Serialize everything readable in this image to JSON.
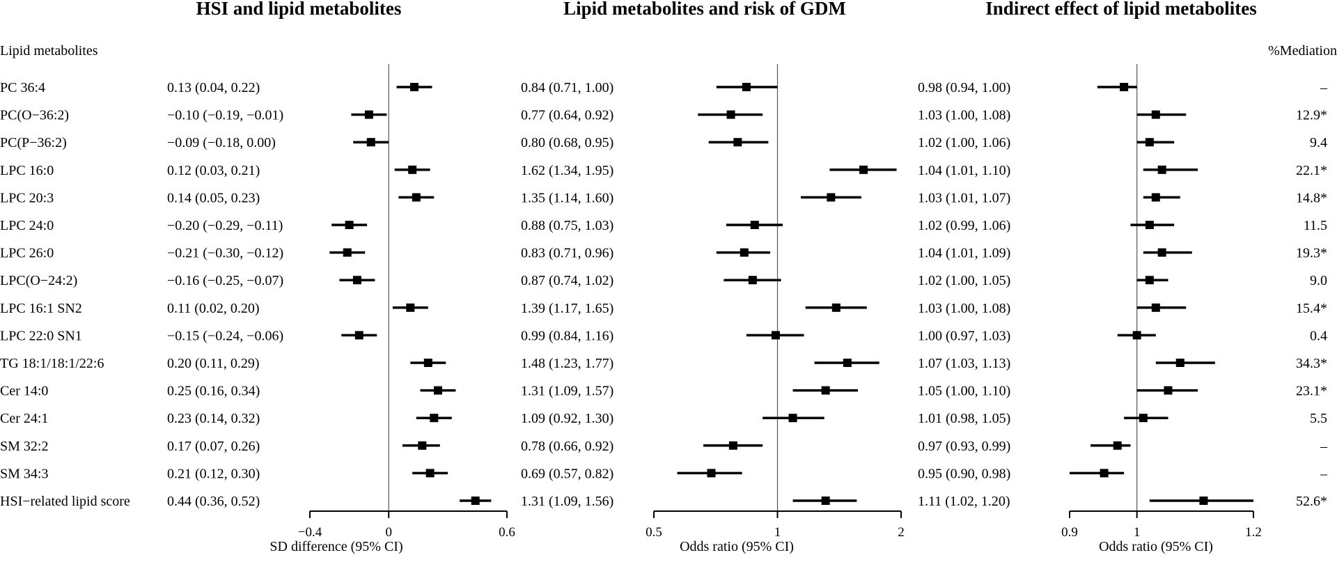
{
  "header": {
    "row_label_title": "Lipid metabolites",
    "mediation_title": "%Mediation"
  },
  "chart_data": [
    {
      "type": "forest",
      "title": "HSI and lipid metabolites",
      "xlabel": "SD difference (95% CI)",
      "xlim": [
        -0.4,
        0.6
      ],
      "xticks": [
        -0.4,
        0,
        0.6
      ],
      "xtick_labels": [
        "−0.4",
        "0",
        "0.6"
      ],
      "xscale": "linear",
      "ref_line": 0,
      "estimate_labels": [
        "0.13 (0.04, 0.22)",
        "−0.10 (−0.19, −0.01)",
        "−0.09 (−0.18, 0.00)",
        "0.12 (0.03, 0.21)",
        "0.14 (0.05, 0.23)",
        "−0.20 (−0.29, −0.11)",
        "−0.21 (−0.30, −0.12)",
        "−0.16 (−0.25, −0.07)",
        "0.11 (0.02, 0.20)",
        "−0.15 (−0.24, −0.06)",
        "0.20 (0.11, 0.29)",
        "0.25 (0.16, 0.34)",
        "0.23 (0.14, 0.32)",
        "0.17 (0.07, 0.26)",
        "0.21 (0.12, 0.30)",
        "0.44 (0.36, 0.52)"
      ],
      "estimates": [
        0.13,
        -0.1,
        -0.09,
        0.12,
        0.14,
        -0.2,
        -0.21,
        -0.16,
        0.11,
        -0.15,
        0.2,
        0.25,
        0.23,
        0.17,
        0.21,
        0.44
      ],
      "lower": [
        0.04,
        -0.19,
        -0.18,
        0.03,
        0.05,
        -0.29,
        -0.3,
        -0.25,
        0.02,
        -0.24,
        0.11,
        0.16,
        0.14,
        0.07,
        0.12,
        0.36
      ],
      "upper": [
        0.22,
        -0.01,
        0.0,
        0.21,
        0.23,
        -0.11,
        -0.12,
        -0.07,
        0.2,
        -0.06,
        0.29,
        0.34,
        0.32,
        0.26,
        0.3,
        0.52
      ]
    },
    {
      "type": "forest",
      "title": "Lipid metabolites and risk of GDM",
      "xlabel": "Odds ratio (95% CI)",
      "xlim": [
        0.5,
        2
      ],
      "xticks": [
        0.5,
        1,
        2
      ],
      "xtick_labels": [
        "0.5",
        "1",
        "2"
      ],
      "xscale": "log",
      "ref_line": 1,
      "estimate_labels": [
        "0.84 (0.71, 1.00)",
        "0.77 (0.64, 0.92)",
        "0.80 (0.68, 0.95)",
        "1.62 (1.34, 1.95)",
        "1.35 (1.14, 1.60)",
        "0.88 (0.75, 1.03)",
        "0.83 (0.71, 0.96)",
        "0.87 (0.74, 1.02)",
        "1.39 (1.17, 1.65)",
        "0.99 (0.84, 1.16)",
        "1.48 (1.23, 1.77)",
        "1.31 (1.09, 1.57)",
        "1.09 (0.92, 1.30)",
        "0.78 (0.66, 0.92)",
        "0.69 (0.57, 0.82)",
        "1.31 (1.09, 1.56)"
      ],
      "estimates": [
        0.84,
        0.77,
        0.8,
        1.62,
        1.35,
        0.88,
        0.83,
        0.87,
        1.39,
        0.99,
        1.48,
        1.31,
        1.09,
        0.78,
        0.69,
        1.31
      ],
      "lower": [
        0.71,
        0.64,
        0.68,
        1.34,
        1.14,
        0.75,
        0.71,
        0.74,
        1.17,
        0.84,
        1.23,
        1.09,
        0.92,
        0.66,
        0.57,
        1.09
      ],
      "upper": [
        1.0,
        0.92,
        0.95,
        1.95,
        1.6,
        1.03,
        0.96,
        1.02,
        1.65,
        1.16,
        1.77,
        1.57,
        1.3,
        0.92,
        0.82,
        1.56
      ]
    },
    {
      "type": "forest",
      "title": "Indirect effect of lipid metabolites",
      "xlabel": "Odds ratio (95% CI)",
      "xlim": [
        0.9,
        1.2
      ],
      "xticks": [
        0.9,
        1,
        1.2
      ],
      "xtick_labels": [
        "0.9",
        "1",
        "1.2"
      ],
      "xscale": "log",
      "ref_line": 1,
      "estimate_labels": [
        "0.98 (0.94, 1.00)",
        "1.03 (1.00, 1.08)",
        "1.02 (1.00, 1.06)",
        "1.04 (1.01, 1.10)",
        "1.03 (1.01, 1.07)",
        "1.02 (0.99, 1.06)",
        "1.04 (1.01, 1.09)",
        "1.02 (1.00, 1.05)",
        "1.03 (1.00, 1.08)",
        "1.00 (0.97, 1.03)",
        "1.07 (1.03, 1.13)",
        "1.05 (1.00, 1.10)",
        "1.01 (0.98, 1.05)",
        "0.97 (0.93, 0.99)",
        "0.95 (0.90, 0.98)",
        "1.11 (1.02, 1.20)"
      ],
      "estimates": [
        0.98,
        1.03,
        1.02,
        1.04,
        1.03,
        1.02,
        1.04,
        1.02,
        1.03,
        1.0,
        1.07,
        1.05,
        1.01,
        0.97,
        0.95,
        1.11
      ],
      "lower": [
        0.94,
        1.0,
        1.0,
        1.01,
        1.01,
        0.99,
        1.01,
        1.0,
        1.0,
        0.97,
        1.03,
        1.0,
        0.98,
        0.93,
        0.9,
        1.02
      ],
      "upper": [
        1.0,
        1.08,
        1.06,
        1.1,
        1.07,
        1.06,
        1.09,
        1.05,
        1.08,
        1.03,
        1.13,
        1.1,
        1.05,
        0.99,
        0.98,
        1.2
      ]
    }
  ],
  "rows": [
    "PC 36:4",
    "PC(O−36:2)",
    "PC(P−36:2)",
    "LPC 16:0",
    "LPC 20:3",
    "LPC 24:0",
    "LPC 26:0",
    "LPC(O−24:2)",
    "LPC 16:1 SN2",
    "LPC 22:0 SN1",
    "TG 18:1/18:1/22:6",
    "Cer 14:0",
    "Cer 24:1",
    "SM 32:2",
    "SM 34:3",
    "HSI−related lipid score"
  ],
  "mediation": [
    "–",
    "12.9*",
    "9.4",
    "22.1*",
    "14.8*",
    "11.5",
    "19.3*",
    "9.0",
    "15.4*",
    "0.4",
    "34.3*",
    "23.1*",
    "5.5",
    "–",
    "–",
    "52.6*"
  ]
}
